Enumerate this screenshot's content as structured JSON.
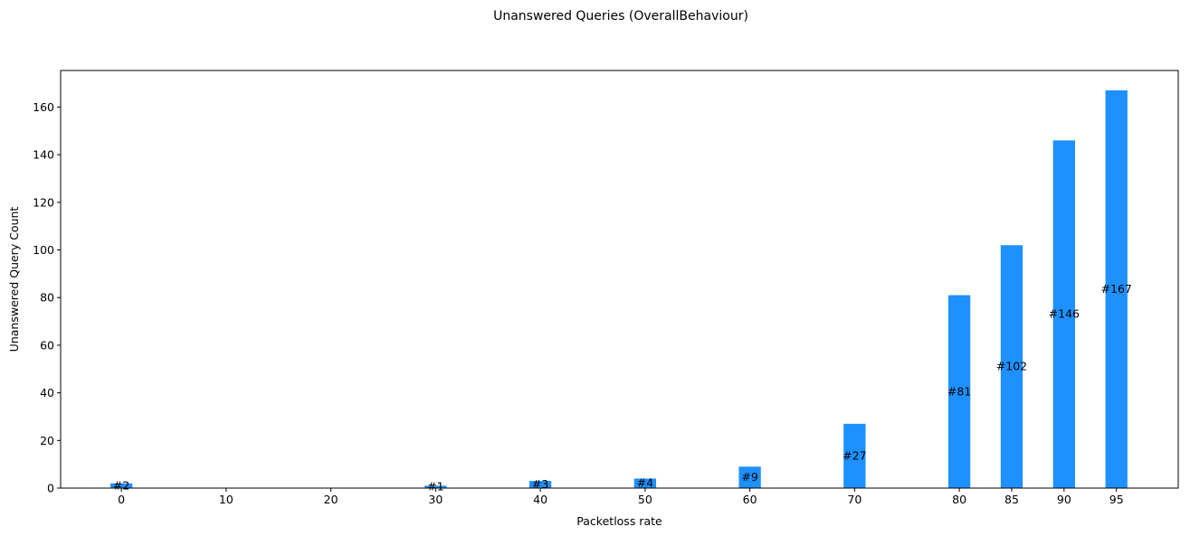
{
  "chart_data": {
    "type": "bar",
    "title": "Unanswered Queries (OverallBehaviour)",
    "xlabel": "Packetloss rate",
    "ylabel": "Unanswered Query Count",
    "x": [
      0,
      10,
      20,
      30,
      40,
      50,
      60,
      70,
      80,
      85,
      90,
      95
    ],
    "values": [
      2,
      0,
      0,
      1,
      3,
      4,
      9,
      27,
      81,
      102,
      146,
      167
    ],
    "data_labels": [
      "#2",
      "",
      "",
      "#1",
      "#3",
      "#4",
      "#9",
      "#27",
      "#81",
      "#102",
      "#146",
      "#167"
    ],
    "xticks": [
      0,
      10,
      20,
      30,
      40,
      50,
      60,
      70,
      80,
      85,
      90,
      95
    ],
    "yticks": [
      0,
      20,
      40,
      60,
      80,
      100,
      120,
      140,
      160
    ],
    "xlim": [
      -5.8,
      100.9
    ],
    "ylim": [
      0,
      175.35
    ],
    "bar_color": "#1e90ff",
    "grid": false
  }
}
